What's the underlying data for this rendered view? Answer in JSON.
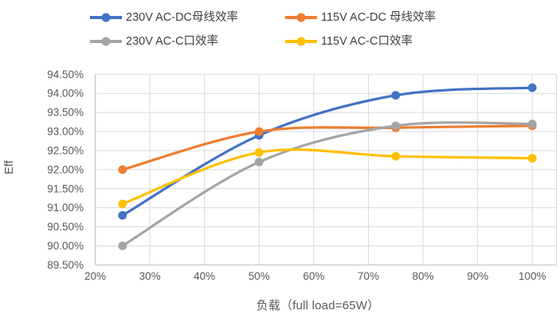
{
  "chart_data": {
    "type": "line",
    "title": "",
    "xlabel": "负载（full load=65W）",
    "ylabel": "Eff",
    "smooth": true,
    "grid": true,
    "legend_position": "top",
    "x": [
      25,
      50,
      75,
      100
    ],
    "series": [
      {
        "name": "230V AC-DC母线效率",
        "color": "#4472C4",
        "values": [
          90.8,
          92.9,
          93.95,
          94.15
        ]
      },
      {
        "name": "115V AC-DC 母线效率",
        "color": "#ED7D31",
        "values": [
          92.0,
          93.0,
          93.1,
          93.15
        ]
      },
      {
        "name": "230V AC-C口效率",
        "color": "#A5A5A5",
        "values": [
          90.0,
          92.2,
          93.15,
          93.2
        ]
      },
      {
        "name": "115V AC-C口效率",
        "color": "#FFC000",
        "values": [
          91.1,
          92.45,
          92.35,
          92.3
        ]
      }
    ],
    "x_tick_labels": [
      "20%",
      "30%",
      "40%",
      "50%",
      "60%",
      "70%",
      "80%",
      "90%",
      "100%"
    ],
    "x_tick_values": [
      20,
      30,
      40,
      50,
      60,
      70,
      80,
      90,
      100
    ],
    "xlim": [
      20,
      104.4
    ],
    "ylim": [
      89.5,
      94.5
    ],
    "y_step": 0.5,
    "y_tick_format": "percent_2dp",
    "colors": {
      "gridline": "#D9D9D9",
      "axis_line": "#BFBFBF",
      "tick_text": "#595959",
      "title_text": "#595959",
      "legend_text": "#3F3F3F",
      "background": "#FFFFFF"
    }
  }
}
